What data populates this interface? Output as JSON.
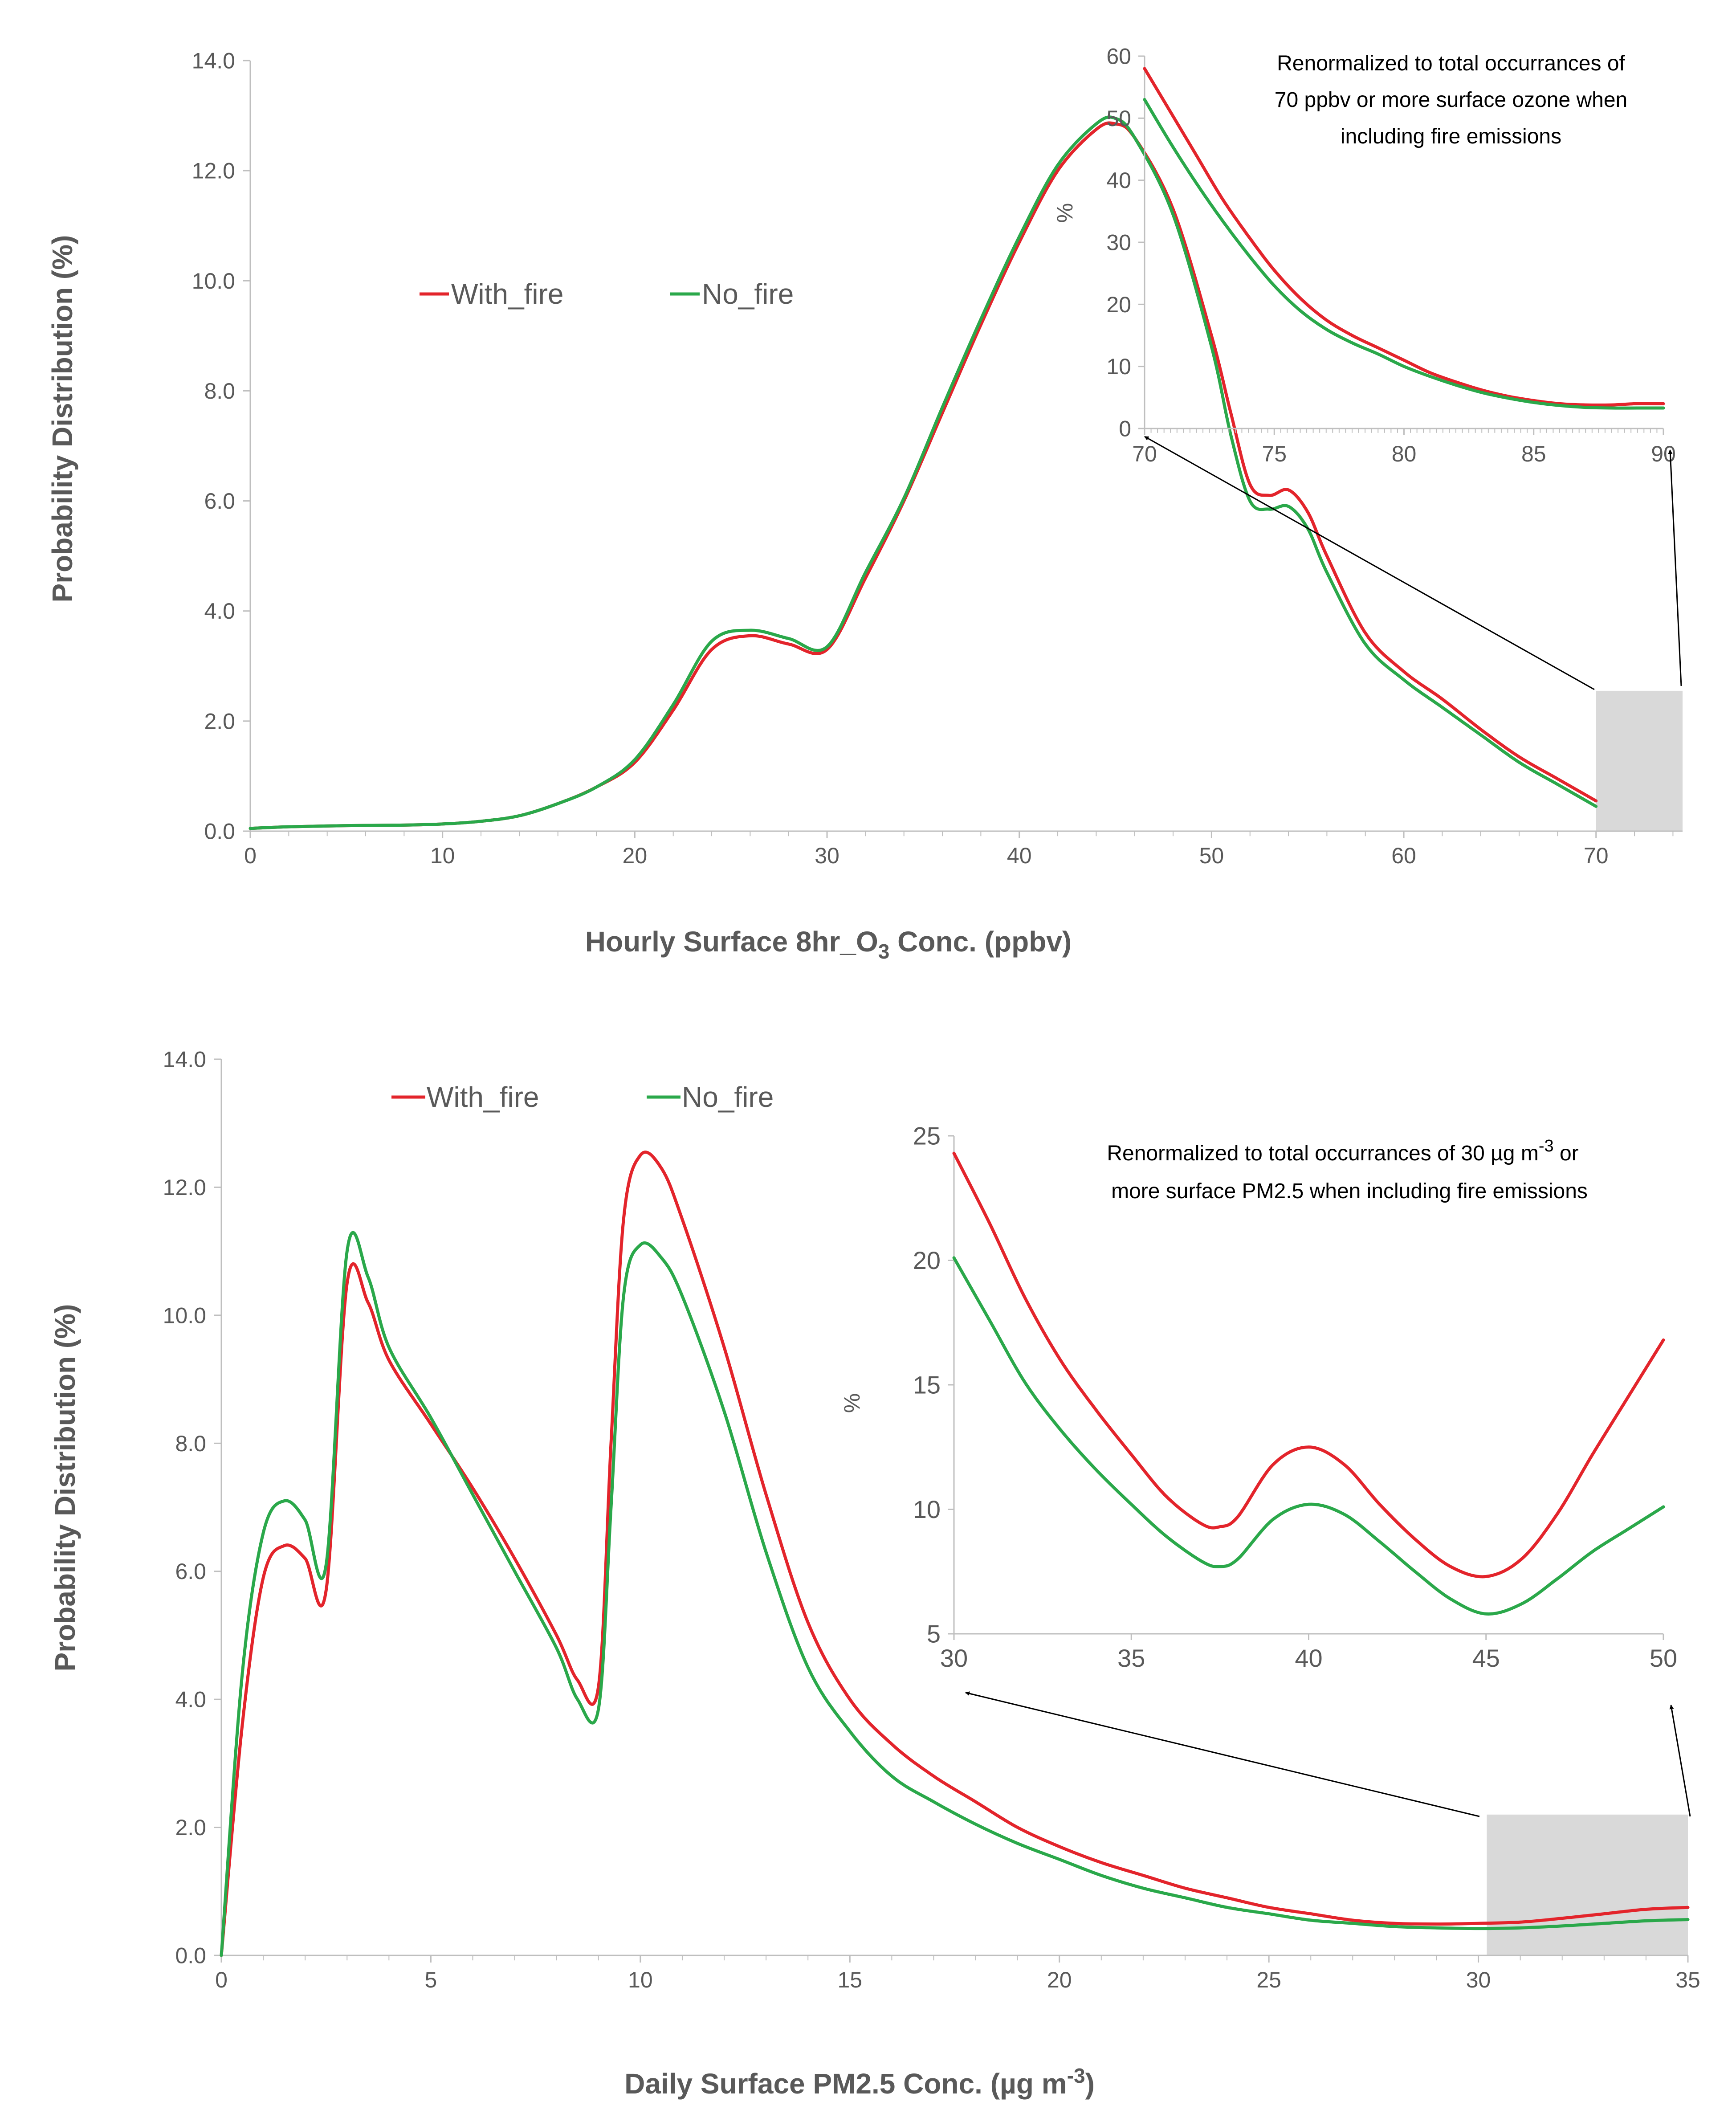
{
  "colors": {
    "with_fire": "#E3242B",
    "no_fire": "#2AA84A",
    "axis": "#BFBFBF",
    "text": "#595959",
    "highlight": "#D9D9D9"
  },
  "chart_data": [
    {
      "id": "ozone-main",
      "type": "line",
      "title": "",
      "xlabel": "Hourly Surface 8hr_O3 Conc. (ppbv)",
      "xlabel_main": "Hourly Surface 8hr_O",
      "xlabel_sub": "3",
      "xlabel_tail": " Conc. (ppbv)",
      "ylabel": "Probability Distribution (%)",
      "xlim": [
        0,
        74.5
      ],
      "ylim": [
        0,
        14
      ],
      "xticks": [
        0,
        10,
        20,
        30,
        40,
        50,
        60,
        70
      ],
      "xtick_labels": [
        "0",
        "10",
        "20",
        "30",
        "40",
        "50",
        "60",
        "70"
      ],
      "yticks": [
        0,
        2,
        4,
        6,
        8,
        10,
        12,
        14
      ],
      "ytick_labels": [
        "0.0",
        "2.0",
        "4.0",
        "6.0",
        "8.0",
        "10.0",
        "12.0",
        "14.0"
      ],
      "legend": [
        "With_fire",
        "No_fire"
      ],
      "legend_position": "upper-left-center",
      "highlight_x": [
        70,
        74.5
      ],
      "highlight_y": [
        0,
        2.55
      ],
      "series": [
        {
          "name": "With_fire",
          "x": [
            0,
            2,
            5,
            8,
            10,
            12,
            14,
            16,
            18,
            20,
            22,
            24,
            26,
            28,
            30,
            32,
            34,
            36,
            38,
            40,
            42,
            44,
            45,
            46,
            48,
            50,
            51,
            52,
            53,
            54,
            55,
            56,
            58,
            60,
            62,
            64,
            66,
            68,
            70
          ],
          "values": [
            0.05,
            0.08,
            0.1,
            0.11,
            0.13,
            0.18,
            0.28,
            0.5,
            0.8,
            1.25,
            2.2,
            3.3,
            3.55,
            3.4,
            3.3,
            4.6,
            6.0,
            7.6,
            9.2,
            10.7,
            12.0,
            12.75,
            12.85,
            12.6,
            11.3,
            9.0,
            7.6,
            6.3,
            6.1,
            6.2,
            5.8,
            5.0,
            3.6,
            2.9,
            2.4,
            1.85,
            1.35,
            0.95,
            0.55
          ]
        },
        {
          "name": "No_fire",
          "x": [
            0,
            2,
            5,
            8,
            10,
            12,
            14,
            16,
            18,
            20,
            22,
            24,
            26,
            28,
            30,
            32,
            34,
            36,
            38,
            40,
            42,
            44,
            45,
            46,
            48,
            50,
            51,
            52,
            53,
            54,
            55,
            56,
            58,
            60,
            62,
            64,
            66,
            68,
            70
          ],
          "values": [
            0.05,
            0.08,
            0.1,
            0.11,
            0.13,
            0.18,
            0.28,
            0.5,
            0.8,
            1.3,
            2.3,
            3.45,
            3.65,
            3.5,
            3.35,
            4.7,
            6.05,
            7.7,
            9.3,
            10.8,
            12.1,
            12.85,
            12.95,
            12.6,
            11.2,
            8.8,
            7.2,
            6.0,
            5.85,
            5.9,
            5.5,
            4.7,
            3.4,
            2.75,
            2.25,
            1.75,
            1.25,
            0.85,
            0.45
          ]
        }
      ]
    },
    {
      "id": "ozone-inset",
      "type": "line",
      "title": "Renormalized to total occurrances of 70 ppbv or more surface ozone when including fire emissions",
      "note_lines": [
        "Renormalized to total occurrances of",
        "70 ppbv or more surface ozone when",
        "including fire emissions"
      ],
      "xlabel": "",
      "ylabel": "%",
      "xlim": [
        70,
        90
      ],
      "ylim": [
        0,
        60
      ],
      "xticks": [
        70,
        75,
        80,
        85,
        90
      ],
      "xtick_labels": [
        "70",
        "75",
        "80",
        "85",
        "90"
      ],
      "yticks": [
        0,
        10,
        20,
        30,
        40,
        50,
        60
      ],
      "ytick_labels": [
        "0",
        "10",
        "20",
        "30",
        "40",
        "50",
        "60"
      ],
      "series": [
        {
          "name": "With_fire",
          "x": [
            70,
            71,
            72,
            73,
            74,
            75,
            76,
            77,
            78,
            79,
            80,
            81,
            82,
            83,
            84,
            85,
            86,
            87,
            88,
            89,
            90
          ],
          "values": [
            58,
            51,
            44,
            37,
            31,
            25.5,
            21,
            17.5,
            15,
            13,
            11,
            9,
            7.5,
            6.2,
            5.2,
            4.5,
            4,
            3.8,
            3.8,
            4,
            4
          ]
        },
        {
          "name": "No_fire",
          "x": [
            70,
            71,
            72,
            73,
            74,
            75,
            76,
            77,
            78,
            79,
            80,
            81,
            82,
            83,
            84,
            85,
            86,
            87,
            88,
            89,
            90
          ],
          "values": [
            53,
            46,
            39.5,
            33.5,
            28,
            23,
            19,
            16,
            13.8,
            12,
            10,
            8.4,
            7,
            5.8,
            4.9,
            4.2,
            3.7,
            3.4,
            3.3,
            3.3,
            3.3
          ]
        }
      ]
    },
    {
      "id": "pm25-main",
      "type": "line",
      "title": "",
      "xlabel": "Daily Surface PM2.5 Conc. (µg m-3)",
      "xlabel_main": "Daily Surface PM2.5 Conc. (µg m",
      "xlabel_sup": "-3",
      "xlabel_tail": ")",
      "ylabel": "Probability Distribution (%)",
      "xlim": [
        0,
        35
      ],
      "ylim": [
        0,
        14
      ],
      "xticks": [
        0,
        5,
        10,
        15,
        20,
        25,
        30,
        35
      ],
      "xtick_labels": [
        "0",
        "5",
        "10",
        "15",
        "20",
        "25",
        "30",
        "35"
      ],
      "yticks": [
        0,
        2,
        4,
        6,
        8,
        10,
        12,
        14
      ],
      "ytick_labels": [
        "0.0",
        "2.0",
        "4.0",
        "6.0",
        "8.0",
        "10.0",
        "12.0",
        "14.0"
      ],
      "legend": [
        "With_fire",
        "No_fire"
      ],
      "legend_position": "top-left",
      "highlight_x": [
        30.2,
        35
      ],
      "highlight_y": [
        0,
        2.2
      ],
      "series": [
        {
          "name": "With_fire",
          "x": [
            0,
            0.5,
            1,
            1.5,
            2,
            2.5,
            3,
            3.5,
            4,
            5,
            6,
            7,
            8,
            8.5,
            9,
            9.3,
            9.6,
            10,
            10.5,
            11,
            12,
            13,
            14,
            15,
            16,
            17,
            18,
            19,
            20,
            21,
            22,
            23,
            24,
            25,
            26,
            27,
            28,
            29,
            30,
            31,
            32,
            33,
            34,
            35
          ],
          "values": [
            0,
            3.6,
            5.9,
            6.4,
            6.2,
            5.7,
            10.5,
            10.2,
            9.3,
            8.3,
            7.3,
            6.2,
            5.0,
            4.3,
            4.2,
            8.0,
            11.5,
            12.5,
            12.3,
            11.5,
            9.5,
            7.2,
            5.2,
            4.0,
            3.3,
            2.8,
            2.4,
            2.0,
            1.7,
            1.45,
            1.25,
            1.05,
            0.9,
            0.75,
            0.65,
            0.55,
            0.5,
            0.49,
            0.5,
            0.52,
            0.58,
            0.65,
            0.72,
            0.75
          ]
        },
        {
          "name": "No_fire",
          "x": [
            0,
            0.5,
            1,
            1.5,
            2,
            2.5,
            3,
            3.5,
            4,
            5,
            6,
            7,
            8,
            8.5,
            9,
            9.3,
            9.6,
            10,
            10.5,
            11,
            12,
            13,
            14,
            15,
            16,
            17,
            18,
            19,
            20,
            21,
            22,
            23,
            24,
            25,
            26,
            27,
            28,
            29,
            30,
            31,
            32,
            33,
            34,
            35
          ],
          "values": [
            0,
            4.4,
            6.6,
            7.1,
            6.8,
            6.1,
            11.0,
            10.6,
            9.5,
            8.4,
            7.2,
            6.0,
            4.8,
            4.0,
            3.85,
            7.0,
            10.3,
            11.1,
            10.9,
            10.3,
            8.5,
            6.3,
            4.5,
            3.5,
            2.8,
            2.4,
            2.05,
            1.75,
            1.5,
            1.25,
            1.05,
            0.9,
            0.75,
            0.65,
            0.55,
            0.5,
            0.45,
            0.43,
            0.42,
            0.43,
            0.46,
            0.5,
            0.54,
            0.56
          ]
        }
      ]
    },
    {
      "id": "pm25-inset",
      "type": "line",
      "title": "Renormalized to total occurrances of 30 µg m-3 or more surface PM2.5 when including fire emissions",
      "note_line1_main": "Renormalized to total occurrances of 30 µg m",
      "note_line1_sup": "-3",
      "note_line1_tail": " or",
      "note_line2": "more surface PM2.5 when including fire emissions",
      "xlabel": "",
      "ylabel": "%",
      "xlim": [
        30,
        50
      ],
      "ylim": [
        5,
        25
      ],
      "xticks": [
        30,
        35,
        40,
        45,
        50
      ],
      "xtick_labels": [
        "30",
        "35",
        "40",
        "45",
        "50"
      ],
      "yticks": [
        5,
        10,
        15,
        20,
        25
      ],
      "ytick_labels": [
        "5",
        "10",
        "15",
        "20",
        "25"
      ],
      "series": [
        {
          "name": "With_fire",
          "x": [
            30,
            31,
            32,
            33,
            34,
            35,
            36,
            37,
            37.5,
            38,
            39,
            40,
            41,
            42,
            43,
            44,
            45,
            46,
            47,
            48,
            49,
            50
          ],
          "values": [
            24.3,
            21.5,
            18.5,
            16,
            14,
            12.2,
            10.5,
            9.4,
            9.3,
            9.7,
            11.8,
            12.5,
            11.8,
            10.2,
            8.8,
            7.7,
            7.3,
            8.0,
            9.8,
            12.2,
            14.5,
            16.8
          ]
        },
        {
          "name": "No_fire",
          "x": [
            30,
            31,
            32,
            33,
            34,
            35,
            36,
            37,
            37.5,
            38,
            39,
            40,
            41,
            42,
            43,
            44,
            45,
            46,
            47,
            48,
            49,
            50
          ],
          "values": [
            20.1,
            17.6,
            15.1,
            13.2,
            11.6,
            10.2,
            8.9,
            7.9,
            7.7,
            8.0,
            9.6,
            10.2,
            9.8,
            8.7,
            7.5,
            6.4,
            5.8,
            6.2,
            7.2,
            8.3,
            9.2,
            10.1
          ]
        }
      ]
    }
  ]
}
